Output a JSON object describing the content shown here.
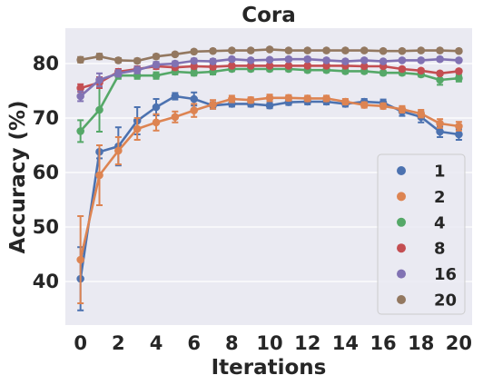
{
  "chart_data": {
    "type": "line",
    "title": "Cora",
    "xlabel": "Iterations",
    "ylabel": "Accuracy (%)",
    "xlim": [
      -0.8,
      20.7
    ],
    "ylim": [
      32,
      86.5
    ],
    "xticks": [
      0,
      2,
      4,
      6,
      8,
      10,
      12,
      14,
      16,
      18,
      20
    ],
    "yticks": [
      40,
      50,
      60,
      70,
      80
    ],
    "grid": true,
    "legend_position": "lower-right",
    "background_color": "#eaeaf2",
    "x": [
      0,
      1,
      2,
      3,
      4,
      5,
      6,
      7,
      8,
      9,
      10,
      11,
      12,
      13,
      14,
      15,
      16,
      17,
      18,
      19,
      20
    ],
    "series": [
      {
        "name": "1",
        "color": "#4c72b0",
        "values": [
          40.5,
          63.8,
          64.8,
          69.5,
          72.0,
          74.0,
          73.5,
          72.3,
          72.6,
          72.6,
          72.3,
          72.9,
          73.0,
          73.0,
          72.6,
          73.0,
          72.8,
          71.2,
          70.2,
          67.5,
          67.0
        ],
        "errors": [
          5.8,
          1.2,
          3.5,
          2.5,
          1.5,
          0.6,
          1.2,
          0.6,
          0.5,
          0.5,
          0.5,
          0.5,
          0.5,
          0.5,
          0.5,
          0.5,
          0.6,
          0.8,
          1.0,
          1.0,
          1.0
        ]
      },
      {
        "name": "2",
        "color": "#dd8452",
        "values": [
          44.0,
          59.5,
          64.0,
          68.0,
          69.2,
          70.2,
          71.4,
          72.5,
          73.5,
          73.3,
          73.7,
          73.7,
          73.6,
          73.6,
          73.0,
          72.4,
          72.2,
          71.6,
          70.8,
          69.0,
          68.5
        ],
        "errors": [
          8.0,
          5.5,
          2.5,
          2.0,
          1.5,
          1.0,
          1.2,
          0.8,
          0.6,
          0.5,
          0.6,
          0.5,
          0.5,
          0.5,
          0.5,
          0.5,
          0.5,
          0.6,
          0.7,
          0.8,
          0.8
        ]
      },
      {
        "name": "4",
        "color": "#55a868",
        "values": [
          67.6,
          71.5,
          77.8,
          77.8,
          77.8,
          78.5,
          78.3,
          78.5,
          79.0,
          79.0,
          79.0,
          79.0,
          78.8,
          78.8,
          78.6,
          78.6,
          78.3,
          78.3,
          78.0,
          77.0,
          77.3
        ],
        "errors": [
          2.0,
          4.0,
          0.6,
          0.6,
          0.6,
          0.5,
          0.5,
          0.5,
          0.4,
          0.4,
          0.4,
          0.4,
          0.4,
          0.4,
          0.4,
          0.4,
          0.4,
          0.4,
          0.4,
          0.9,
          0.6
        ]
      },
      {
        "name": "8",
        "color": "#c44e52",
        "values": [
          75.5,
          76.5,
          78.5,
          79.0,
          79.5,
          79.3,
          79.5,
          79.4,
          79.6,
          79.6,
          79.6,
          79.6,
          79.6,
          79.6,
          79.6,
          79.5,
          79.5,
          79.0,
          78.7,
          78.2,
          78.6
        ],
        "errors": [
          0.7,
          1.0,
          0.5,
          0.5,
          0.5,
          0.4,
          0.4,
          0.4,
          0.3,
          0.3,
          0.3,
          0.3,
          0.3,
          0.3,
          0.3,
          0.3,
          0.3,
          0.3,
          0.3,
          0.3,
          0.3
        ]
      },
      {
        "name": "16",
        "color": "#8172b3",
        "values": [
          74.0,
          77.0,
          78.2,
          78.8,
          79.8,
          80.0,
          80.5,
          80.4,
          80.8,
          80.6,
          80.7,
          80.8,
          80.8,
          80.6,
          80.4,
          80.6,
          80.4,
          80.6,
          80.6,
          80.8,
          80.6
        ],
        "errors": [
          0.9,
          1.2,
          0.6,
          0.6,
          0.5,
          0.4,
          0.4,
          0.4,
          0.3,
          0.3,
          0.3,
          0.3,
          0.3,
          0.3,
          0.3,
          0.3,
          0.3,
          0.3,
          0.3,
          0.3,
          0.3
        ]
      },
      {
        "name": "20",
        "color": "#937860",
        "values": [
          80.7,
          81.3,
          80.6,
          80.5,
          81.3,
          81.7,
          82.2,
          82.3,
          82.4,
          82.4,
          82.6,
          82.4,
          82.4,
          82.4,
          82.4,
          82.4,
          82.3,
          82.3,
          82.4,
          82.4,
          82.3
        ],
        "errors": [
          0.5,
          0.5,
          0.4,
          0.4,
          0.4,
          0.3,
          0.3,
          0.3,
          0.3,
          0.3,
          0.3,
          0.3,
          0.3,
          0.3,
          0.3,
          0.3,
          0.3,
          0.3,
          0.3,
          0.3,
          0.3
        ]
      }
    ]
  }
}
